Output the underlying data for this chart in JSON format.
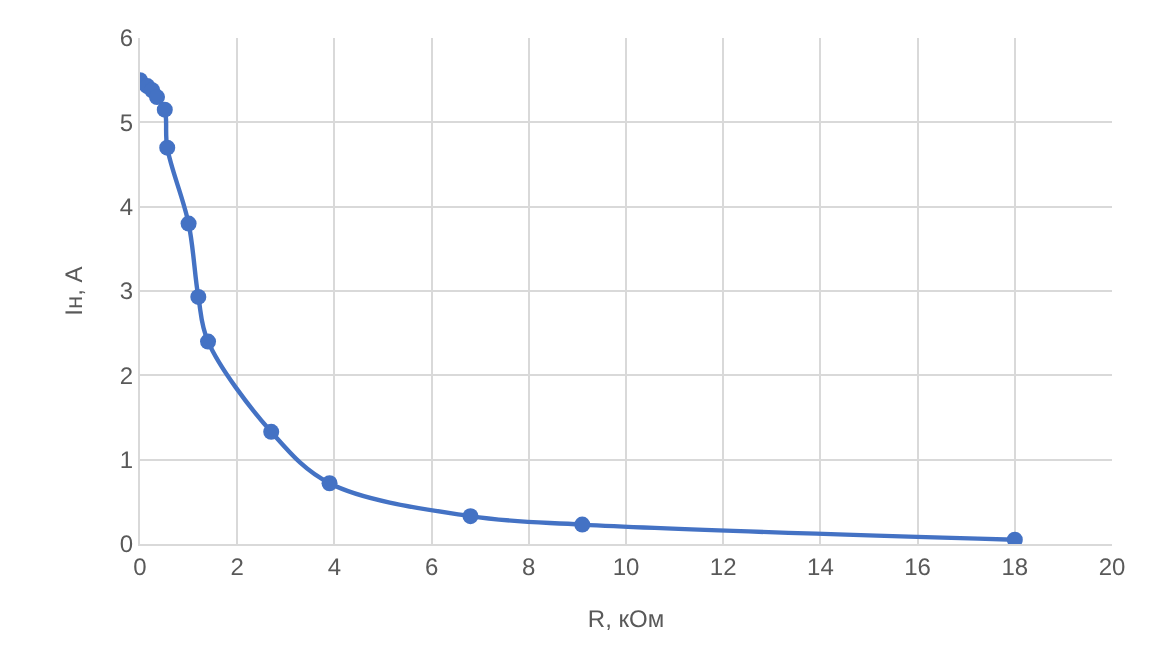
{
  "chart_data": {
    "type": "line",
    "xlabel": "R, кОм",
    "ylabel": "Iн, А",
    "x": [
      0,
      0.15,
      0.25,
      0.35,
      0.51,
      0.56,
      1.0,
      1.2,
      1.4,
      2.7,
      3.9,
      6.8,
      9.1,
      18
    ],
    "series": [
      {
        "color": "#4472c4",
        "values": [
          5.5,
          5.43,
          5.38,
          5.3,
          5.15,
          4.7,
          3.8,
          2.93,
          2.4,
          1.33,
          0.72,
          0.33,
          0.23,
          0.05
        ]
      }
    ],
    "xlim": [
      0,
      20
    ],
    "xticks": [
      0,
      2,
      4,
      6,
      8,
      10,
      12,
      14,
      16,
      18,
      20
    ],
    "ylim": [
      0,
      6
    ],
    "yticks": [
      0,
      1,
      2,
      3,
      4,
      5,
      6
    ],
    "grid": true,
    "marker": "circle",
    "line_style": "solid"
  }
}
